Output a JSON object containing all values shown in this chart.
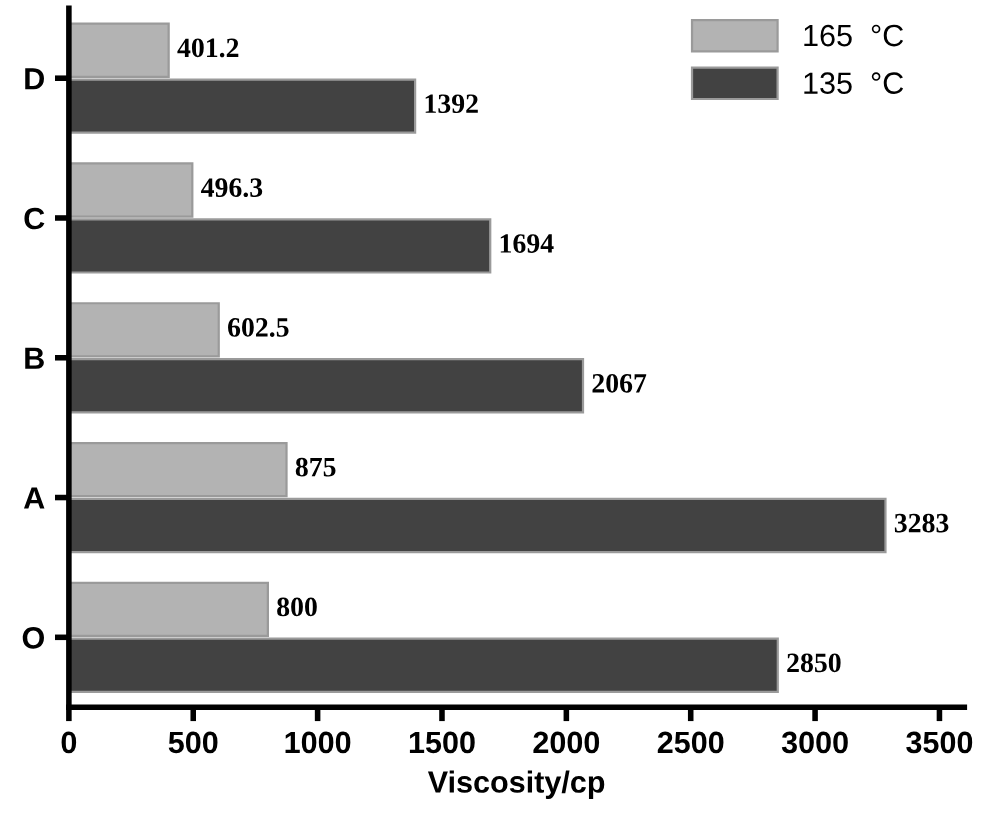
{
  "chart_data": {
    "type": "bar",
    "orientation": "horizontal",
    "xlabel": "Viscosity/cp",
    "categories": [
      "D",
      "C",
      "B",
      "A",
      "O"
    ],
    "series": [
      {
        "name": "165  °C",
        "color": "#b3b3b3",
        "values": [
          401.2,
          496.3,
          602.5,
          875,
          800
        ]
      },
      {
        "name": "135  °C",
        "color": "#424242",
        "values": [
          1392,
          1694,
          2067,
          3283,
          2850
        ]
      }
    ],
    "data_labels": true,
    "xlim": [
      0,
      3600
    ],
    "xticks": [
      0,
      500,
      1000,
      1500,
      2000,
      2500,
      3000,
      3500
    ],
    "grid": false,
    "legend": "top right"
  }
}
